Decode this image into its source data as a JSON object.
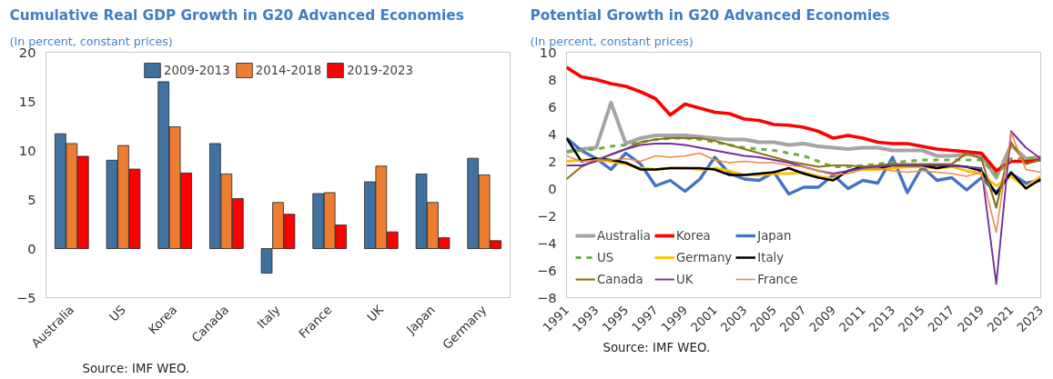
{
  "chart_data": [
    {
      "type": "bar",
      "title": "Cumulative Real GDP Growth in G20 Advanced Economies",
      "subtitle": "(In percent, constant prices)",
      "annotations": [
        "Source: IMF WEO."
      ],
      "categories": [
        "Australia",
        "US",
        "Korea",
        "Canada",
        "Italy",
        "France",
        "UK",
        "Japan",
        "Germany"
      ],
      "series": [
        {
          "name": "2009-2013",
          "color": "#41729f",
          "values": [
            11.7,
            9.0,
            17.0,
            10.7,
            -2.5,
            5.6,
            6.8,
            7.6,
            9.2
          ]
        },
        {
          "name": "2014-2018",
          "color": "#ed7d31",
          "values": [
            10.7,
            10.5,
            12.4,
            7.6,
            4.7,
            5.7,
            8.4,
            4.7,
            7.5
          ]
        },
        {
          "name": "2019-2023",
          "color": "#ff0000",
          "values": [
            9.4,
            8.1,
            7.7,
            5.1,
            3.5,
            2.4,
            1.7,
            1.1,
            0.8
          ]
        }
      ],
      "ylim": [
        -5,
        20
      ],
      "yticks": [
        -5,
        0,
        5,
        10,
        15,
        20
      ],
      "grid": false,
      "legend": "top"
    },
    {
      "type": "line",
      "title": "Potential Growth in G20 Advanced Economies",
      "subtitle": "(In percent, constant prices)",
      "annotations": [
        "Source: IMF WEO."
      ],
      "x": [
        1991,
        1992,
        1993,
        1994,
        1995,
        1996,
        1997,
        1998,
        1999,
        2000,
        2001,
        2002,
        2003,
        2004,
        2005,
        2006,
        2007,
        2008,
        2009,
        2010,
        2011,
        2012,
        2013,
        2014,
        2015,
        2016,
        2017,
        2018,
        2019,
        2020,
        2021,
        2022,
        2023
      ],
      "series": [
        {
          "name": "Australia",
          "color": "#a5a5a5",
          "values": [
            2.7,
            2.9,
            3.0,
            6.3,
            3.3,
            3.7,
            3.9,
            3.9,
            3.9,
            3.8,
            3.7,
            3.6,
            3.6,
            3.4,
            3.4,
            3.2,
            3.3,
            3.1,
            3.0,
            2.9,
            3.0,
            3.0,
            2.8,
            2.8,
            2.8,
            2.4,
            2.4,
            2.5,
            2.4,
            0.8,
            3.2,
            2.2,
            2.3
          ]
        },
        {
          "name": "Korea",
          "color": "#ff0000",
          "values": [
            8.9,
            8.2,
            8.0,
            7.7,
            7.5,
            7.1,
            6.6,
            5.4,
            6.2,
            5.9,
            5.6,
            5.5,
            5.1,
            5.0,
            4.7,
            4.65,
            4.5,
            4.2,
            3.7,
            3.9,
            3.7,
            3.4,
            3.3,
            3.3,
            3.1,
            2.9,
            2.8,
            2.7,
            2.6,
            1.3,
            2.0,
            2.0,
            2.1
          ]
        },
        {
          "name": "Japan",
          "color": "#4472c4",
          "values": [
            3.7,
            2.8,
            2.2,
            1.4,
            2.6,
            1.8,
            0.2,
            0.6,
            -0.2,
            0.7,
            2.3,
            1.1,
            0.7,
            0.6,
            1.2,
            -0.4,
            0.1,
            0.1,
            1.0,
            0.0,
            0.6,
            0.4,
            2.3,
            -0.3,
            1.6,
            0.6,
            0.8,
            -0.1,
            0.8,
            -0.3,
            1.1,
            0.4,
            0.6
          ]
        },
        {
          "name": "US",
          "color": "#70ad47",
          "line_style": "dashed",
          "values": [
            2.7,
            2.8,
            2.9,
            3.1,
            3.2,
            3.4,
            3.6,
            3.7,
            3.7,
            3.6,
            3.4,
            3.2,
            3.0,
            2.9,
            2.8,
            2.6,
            2.4,
            2.0,
            1.6,
            1.6,
            1.7,
            1.8,
            1.9,
            2.0,
            2.1,
            2.1,
            2.1,
            2.1,
            2.1,
            1.0,
            2.2,
            2.2,
            2.3
          ]
        },
        {
          "name": "Germany",
          "color": "#ffc000",
          "values": [
            2.0,
            2.1,
            2.1,
            2.0,
            1.8,
            1.5,
            1.4,
            1.5,
            1.5,
            1.4,
            1.5,
            1.3,
            1.0,
            1.0,
            1.1,
            1.1,
            1.2,
            0.9,
            0.7,
            1.3,
            1.4,
            1.4,
            1.5,
            1.6,
            1.6,
            1.5,
            1.6,
            1.3,
            1.1,
            0.2,
            0.9,
            0.1,
            0.9
          ]
        },
        {
          "name": "Italy",
          "color": "#000000",
          "values": [
            3.7,
            2.0,
            2.2,
            2.1,
            1.9,
            1.4,
            1.4,
            1.5,
            1.5,
            1.5,
            1.4,
            1.0,
            1.0,
            1.1,
            1.2,
            1.5,
            1.1,
            0.8,
            0.6,
            1.3,
            1.6,
            1.5,
            1.7,
            1.7,
            1.7,
            1.5,
            1.7,
            1.6,
            1.3,
            -0.4,
            1.2,
            0.0,
            0.7
          ]
        },
        {
          "name": "Canada",
          "color": "#8c7318",
          "values": [
            0.7,
            1.6,
            2.1,
            2.5,
            2.9,
            3.4,
            3.6,
            3.7,
            3.7,
            3.7,
            3.5,
            3.2,
            2.9,
            2.6,
            2.3,
            2.0,
            1.8,
            1.6,
            1.7,
            1.7,
            1.6,
            1.7,
            1.8,
            1.8,
            1.8,
            1.8,
            1.8,
            2.6,
            2.2,
            -1.4,
            3.4,
            1.8,
            2.1
          ]
        },
        {
          "name": "UK",
          "color": "#7030a0",
          "values": [
            1.7,
            1.7,
            2.0,
            2.5,
            2.9,
            3.2,
            3.3,
            3.3,
            3.2,
            3.0,
            2.8,
            2.6,
            2.4,
            2.3,
            2.1,
            1.9,
            1.6,
            1.3,
            1.1,
            1.3,
            1.5,
            1.6,
            1.7,
            1.7,
            1.7,
            1.7,
            1.7,
            1.6,
            1.5,
            -7.0,
            4.2,
            3.0,
            2.2
          ]
        },
        {
          "name": "France",
          "color": "#f08a4b",
          "values": [
            2.4,
            2.0,
            2.1,
            2.1,
            2.2,
            2.0,
            2.4,
            2.3,
            2.4,
            2.6,
            2.1,
            1.9,
            2.0,
            1.9,
            1.9,
            1.7,
            1.6,
            1.3,
            1.0,
            1.1,
            1.4,
            1.5,
            1.3,
            1.2,
            1.3,
            1.2,
            1.1,
            0.9,
            1.2,
            -3.2,
            4.1,
            1.4,
            1.2
          ]
        }
      ],
      "xlim": [
        1991,
        2023
      ],
      "xticks": [
        1991,
        1993,
        1995,
        1997,
        1999,
        2001,
        2003,
        2005,
        2007,
        2009,
        2011,
        2013,
        2015,
        2017,
        2019,
        2021,
        2023
      ],
      "ylim": [
        -8,
        10
      ],
      "yticks": [
        -8,
        -6,
        -4,
        -2,
        0,
        2,
        4,
        6,
        8,
        10
      ],
      "grid": false,
      "legend": "bottom left",
      "line_style": "solid",
      "marker": "none"
    }
  ]
}
